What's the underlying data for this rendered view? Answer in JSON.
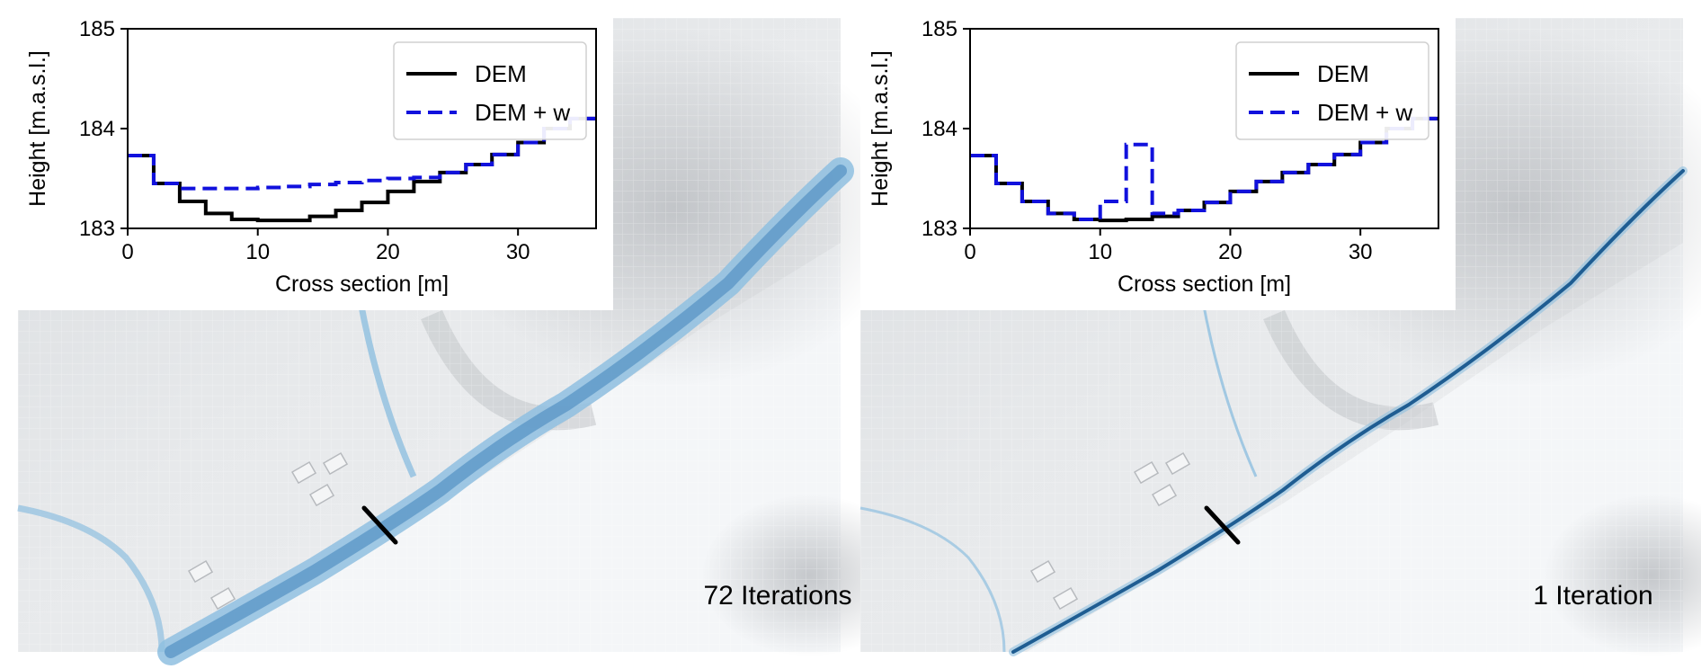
{
  "colors": {
    "dem": "#000000",
    "dem_w": "#1111dd",
    "water_light": "#8fbfe0",
    "water_dark": "#1f5d92",
    "terrain_light": "#f2f4f6",
    "terrain_shade": "#c9ccd0"
  },
  "chart_data": [
    {
      "type": "line",
      "panel": "left",
      "title": "",
      "xlabel": "Cross section [m]",
      "ylabel": "Height [m.a.s.l.]",
      "xlim": [
        0,
        36
      ],
      "ylim": [
        183,
        185
      ],
      "xticks": [
        "0",
        "10",
        "20",
        "30"
      ],
      "yticks": [
        "183",
        "184",
        "185"
      ],
      "legend": {
        "placement": "top-right",
        "entries": [
          "DEM",
          "DEM + w"
        ]
      },
      "annotation": "72 Iterations",
      "series": [
        {
          "name": "DEM",
          "style": "solid",
          "x": [
            0,
            2,
            4,
            6,
            8,
            10,
            12,
            14,
            16,
            18,
            20,
            22,
            24,
            26,
            28,
            30,
            32,
            34,
            36
          ],
          "y": [
            183.73,
            183.45,
            183.27,
            183.15,
            183.09,
            183.08,
            183.08,
            183.12,
            183.18,
            183.26,
            183.37,
            183.47,
            183.56,
            183.64,
            183.74,
            183.86,
            184.0,
            184.1,
            184.13
          ]
        },
        {
          "name": "DEM + w",
          "style": "dashed",
          "x": [
            0,
            2,
            4,
            6,
            8,
            10,
            12,
            14,
            16,
            18,
            20,
            22,
            24,
            26,
            28,
            30,
            32,
            34,
            36
          ],
          "y": [
            183.73,
            183.45,
            183.4,
            183.4,
            183.4,
            183.41,
            183.42,
            183.44,
            183.46,
            183.48,
            183.5,
            183.51,
            183.56,
            183.64,
            183.74,
            183.86,
            184.0,
            184.1,
            184.13
          ]
        }
      ]
    },
    {
      "type": "line",
      "panel": "right",
      "title": "",
      "xlabel": "Cross section [m]",
      "ylabel": "Height [m.a.s.l.]",
      "xlim": [
        0,
        36
      ],
      "ylim": [
        183,
        185
      ],
      "xticks": [
        "0",
        "10",
        "20",
        "30"
      ],
      "yticks": [
        "183",
        "184",
        "185"
      ],
      "legend": {
        "placement": "top-right",
        "entries": [
          "DEM",
          "DEM + w"
        ]
      },
      "annotation": "1 Iteration",
      "series": [
        {
          "name": "DEM",
          "style": "solid",
          "x": [
            0,
            2,
            4,
            6,
            8,
            10,
            12,
            14,
            16,
            18,
            20,
            22,
            24,
            26,
            28,
            30,
            32,
            34,
            36
          ],
          "y": [
            183.73,
            183.45,
            183.27,
            183.15,
            183.09,
            183.08,
            183.09,
            183.12,
            183.18,
            183.26,
            183.37,
            183.47,
            183.56,
            183.64,
            183.74,
            183.86,
            184.0,
            184.1,
            184.13
          ]
        },
        {
          "name": "DEM + w",
          "style": "dashed",
          "x": [
            0,
            2,
            4,
            6,
            8,
            10,
            12,
            14,
            16,
            18,
            20,
            22,
            24,
            26,
            28,
            30,
            32,
            34,
            36
          ],
          "y": [
            183.73,
            183.45,
            183.27,
            183.15,
            183.09,
            183.27,
            183.84,
            183.15,
            183.18,
            183.26,
            183.37,
            183.47,
            183.56,
            183.64,
            183.74,
            183.86,
            184.0,
            184.1,
            184.13
          ]
        }
      ]
    }
  ]
}
